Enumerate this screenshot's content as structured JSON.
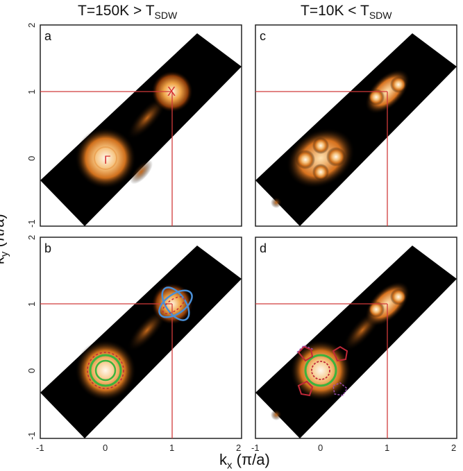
{
  "titles": {
    "left": {
      "main": "T=150K > T",
      "sub": "SDW"
    },
    "right": {
      "main": "T=10K < T",
      "sub": "SDW"
    }
  },
  "axes": {
    "xlabel": {
      "main": "k",
      "sub": "x",
      "unit": " (π/a)"
    },
    "ylabel": {
      "main": "k",
      "sub": "y",
      "unit": " (π/a)"
    },
    "xticks": [
      "-1",
      "0",
      "1",
      "2"
    ],
    "yticks": [
      "-1",
      "0",
      "1",
      "2"
    ],
    "xrange": [
      -1,
      2
    ],
    "yrange": [
      -1,
      2
    ]
  },
  "panels": [
    {
      "label": "a",
      "marker": "Γ",
      "marker_x": "X"
    },
    {
      "label": "c"
    },
    {
      "label": "b"
    },
    {
      "label": "d"
    }
  ],
  "colors": {
    "background": "#000000",
    "intensity_high": "#fff6e6",
    "intensity_mid": "#e8902e",
    "guide_lines": "#d13b3b",
    "contour_green": "#3db33d",
    "contour_blue": "#4a8fd6",
    "contour_red": "#c02838",
    "contour_purple": "#9a4fb0"
  }
}
